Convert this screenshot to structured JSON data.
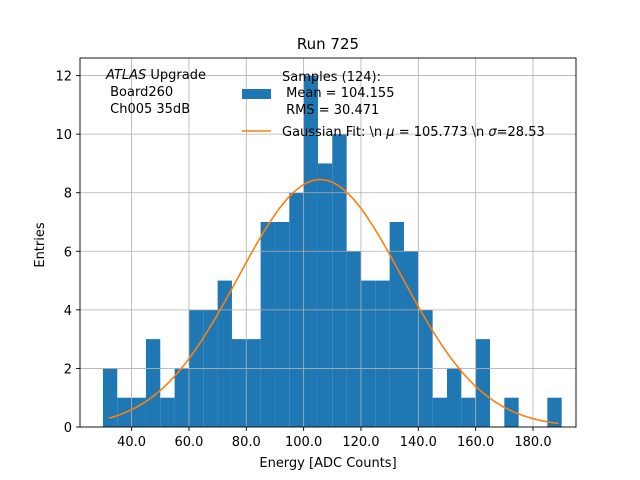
{
  "chart_data": {
    "type": "bar",
    "title": "Run 725",
    "xlabel": "Energy [ADC Counts]",
    "ylabel": "Entries",
    "xlim": [
      22,
      195
    ],
    "ylim": [
      0,
      12.6
    ],
    "grid": true,
    "x_ticks": [
      40,
      60,
      80,
      100,
      120,
      140,
      160,
      180
    ],
    "x_tick_labels": [
      "40.0",
      "60.0",
      "80.0",
      "100.0",
      "120.0",
      "140.0",
      "160.0",
      "180.0"
    ],
    "y_ticks": [
      0,
      2,
      4,
      6,
      8,
      10,
      12
    ],
    "y_tick_labels": [
      "0",
      "2",
      "4",
      "6",
      "8",
      "10",
      "12"
    ],
    "bin_start": 30,
    "bin_width": 5,
    "histogram_values": [
      2,
      1,
      1,
      3,
      1,
      2,
      4,
      4,
      5,
      3,
      3,
      7,
      7,
      8,
      12,
      9,
      10,
      6,
      5,
      5,
      7,
      6,
      4,
      1,
      2,
      1,
      3,
      0,
      1,
      0,
      0,
      1
    ],
    "histogram_color": "#1f77b4",
    "fit_color": "#ff7f0e",
    "fit": {
      "type": "gaussian",
      "amplitude": 8.45,
      "mu": 105.773,
      "sigma": 28.53,
      "x_range": [
        32,
        189
      ]
    },
    "legend_position": "top-right",
    "legend": {
      "samples_label": "Samples (124):",
      "mean_label": " Mean = 104.155",
      "rms_label": " RMS = 30.471",
      "fit_label_part1": "Gaussian Fit: \\n ",
      "fit_mu_symbol": "μ",
      "fit_label_part2": " = 105.773 \\n ",
      "fit_sigma_symbol": "σ",
      "fit_label_part3": "=28.53"
    },
    "annotation": {
      "atlas": "ATLAS",
      "upgrade": " Upgrade",
      "board": " Board260",
      "channel": " Ch005 35dB"
    }
  }
}
